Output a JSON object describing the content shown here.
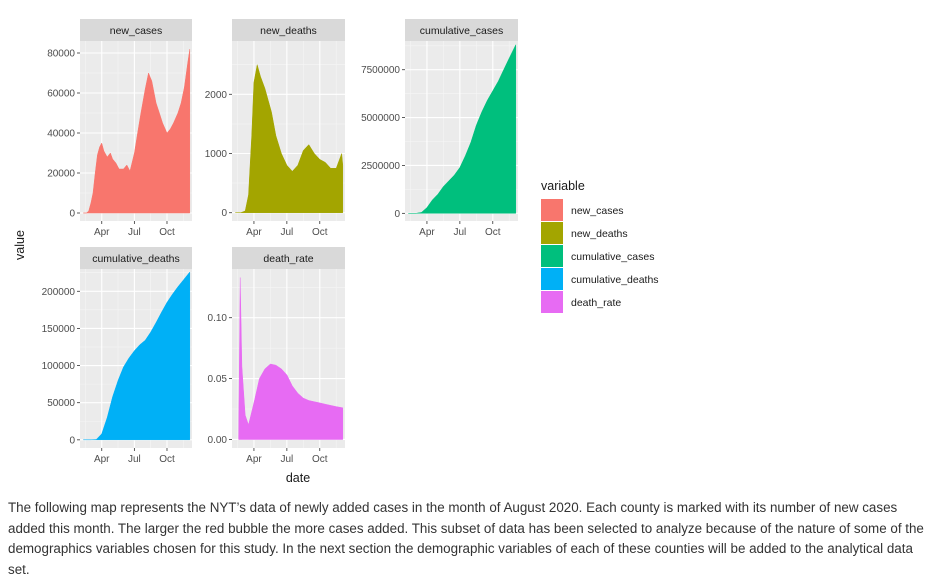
{
  "chart_data": {
    "type": "area",
    "description_title": "",
    "xlabel": "date",
    "ylabel": "value",
    "x_ticks": [
      "Apr",
      "Jul",
      "Oct"
    ],
    "panels": [
      {
        "id": "new_cases",
        "strip": "new_cases",
        "color": "#F8766D",
        "ylim": [
          -4000,
          86000
        ],
        "y_ticks": [
          0,
          20000,
          40000,
          60000,
          80000
        ],
        "y_tick_labels": [
          "0",
          "20000",
          "40000",
          "60000",
          "80000"
        ],
        "x_months": [
          1.3,
          1.6,
          1.8,
          2.0,
          2.2,
          2.4,
          2.6,
          2.8,
          3.0,
          3.2,
          3.5,
          3.8,
          4.0,
          4.3,
          4.6,
          5.0,
          5.3,
          5.6,
          6.0,
          6.3,
          6.6,
          7.0,
          7.3,
          7.6,
          8.0,
          8.3,
          8.6,
          9.0,
          9.3,
          9.6,
          10.0,
          10.3,
          10.6,
          10.9,
          11.1
        ],
        "values": [
          0,
          0,
          1000,
          5000,
          10000,
          20000,
          29000,
          33000,
          35000,
          31000,
          28000,
          30000,
          27000,
          25000,
          22000,
          22000,
          24000,
          21000,
          30000,
          40000,
          50000,
          62000,
          70000,
          66000,
          55000,
          50000,
          45000,
          40000,
          42000,
          45000,
          50000,
          55000,
          63000,
          75000,
          82000
        ]
      },
      {
        "id": "new_deaths",
        "strip": "new_deaths",
        "color": "#A3A500",
        "ylim": [
          -140,
          2900
        ],
        "y_ticks": [
          0,
          1000,
          2000
        ],
        "y_tick_labels": [
          "0",
          "1000",
          "2000"
        ],
        "x_months": [
          1.3,
          1.8,
          2.2,
          2.5,
          2.8,
          3.0,
          3.3,
          3.6,
          4.0,
          4.3,
          4.6,
          5.0,
          5.5,
          6.0,
          6.5,
          7.0,
          7.5,
          8.0,
          8.5,
          9.0,
          9.5,
          10.0,
          10.5,
          11.0,
          11.1
        ],
        "values": [
          0,
          0,
          30,
          300,
          1300,
          2200,
          2500,
          2300,
          2100,
          1900,
          1700,
          1300,
          1000,
          800,
          700,
          800,
          1050,
          1150,
          1000,
          900,
          850,
          750,
          750,
          1000,
          800
        ]
      },
      {
        "id": "cumulative_cases",
        "strip": "cumulative_cases",
        "color": "#00BF7D",
        "ylim": [
          -400000,
          9000000
        ],
        "y_ticks": [
          0,
          2500000,
          5000000,
          7500000
        ],
        "y_tick_labels": [
          "0",
          "2500000",
          "5000000",
          "7500000"
        ],
        "x_months": [
          1.3,
          2.0,
          2.5,
          3.0,
          3.5,
          4.0,
          4.5,
          5.0,
          5.5,
          6.0,
          6.5,
          7.0,
          7.5,
          8.0,
          8.5,
          9.0,
          9.5,
          10.0,
          10.5,
          11.1
        ],
        "values": [
          0,
          0,
          50000,
          300000,
          700000,
          1000000,
          1400000,
          1700000,
          2000000,
          2400000,
          3000000,
          3700000,
          4600000,
          5300000,
          5900000,
          6400000,
          6900000,
          7500000,
          8100000,
          8800000
        ]
      },
      {
        "id": "cumulative_deaths",
        "strip": "cumulative_deaths",
        "color": "#00B0F6",
        "ylim": [
          -11000,
          230000
        ],
        "y_ticks": [
          0,
          50000,
          100000,
          150000,
          200000
        ],
        "y_tick_labels": [
          "0",
          "50000",
          "100000",
          "150000",
          "200000"
        ],
        "x_months": [
          1.3,
          2.0,
          2.5,
          3.0,
          3.5,
          4.0,
          4.5,
          5.0,
          5.5,
          6.0,
          6.5,
          7.0,
          7.5,
          8.0,
          8.5,
          9.0,
          9.5,
          10.0,
          10.5,
          11.1
        ],
        "values": [
          0,
          0,
          500,
          8000,
          30000,
          58000,
          80000,
          98000,
          110000,
          120000,
          128000,
          134000,
          145000,
          158000,
          172000,
          185000,
          196000,
          206000,
          215000,
          226000
        ]
      },
      {
        "id": "death_rate",
        "strip": "death_rate",
        "color": "#E76BF3",
        "ylim": [
          -0.007,
          0.14
        ],
        "y_ticks": [
          0,
          0.05,
          0.1
        ],
        "y_tick_labels": [
          "0.00",
          "0.05",
          "0.10"
        ],
        "x_months": [
          1.6,
          1.75,
          1.9,
          2.2,
          2.5,
          3.0,
          3.5,
          4.0,
          4.5,
          5.0,
          5.5,
          6.0,
          6.5,
          7.0,
          7.5,
          8.0,
          8.5,
          9.0,
          9.5,
          10.0,
          10.5,
          11.1
        ],
        "values": [
          0,
          0.133,
          0.06,
          0.02,
          0.012,
          0.03,
          0.05,
          0.058,
          0.062,
          0.061,
          0.058,
          0.053,
          0.044,
          0.038,
          0.034,
          0.032,
          0.031,
          0.03,
          0.029,
          0.028,
          0.027,
          0.026
        ]
      }
    ],
    "legend": {
      "title": "variable",
      "position": "right",
      "entries": [
        {
          "label": "new_cases",
          "color": "#F8766D"
        },
        {
          "label": "new_deaths",
          "color": "#A3A500"
        },
        {
          "label": "cumulative_cases",
          "color": "#00BF7D"
        },
        {
          "label": "cumulative_deaths",
          "color": "#00B0F6"
        },
        {
          "label": "death_rate",
          "color": "#E76BF3"
        }
      ]
    }
  },
  "paragraph": "The following map represents the NYT’s data of newly added cases in the month of August 2020. Each county is marked with its number of new cases added this month. The larger the red bubble the more cases added. This subset of data has been selected to analyze because of the nature of some of the demographics variables chosen for this study. In the next section the demographic variables of each of these counties will be added to the analytical data set."
}
